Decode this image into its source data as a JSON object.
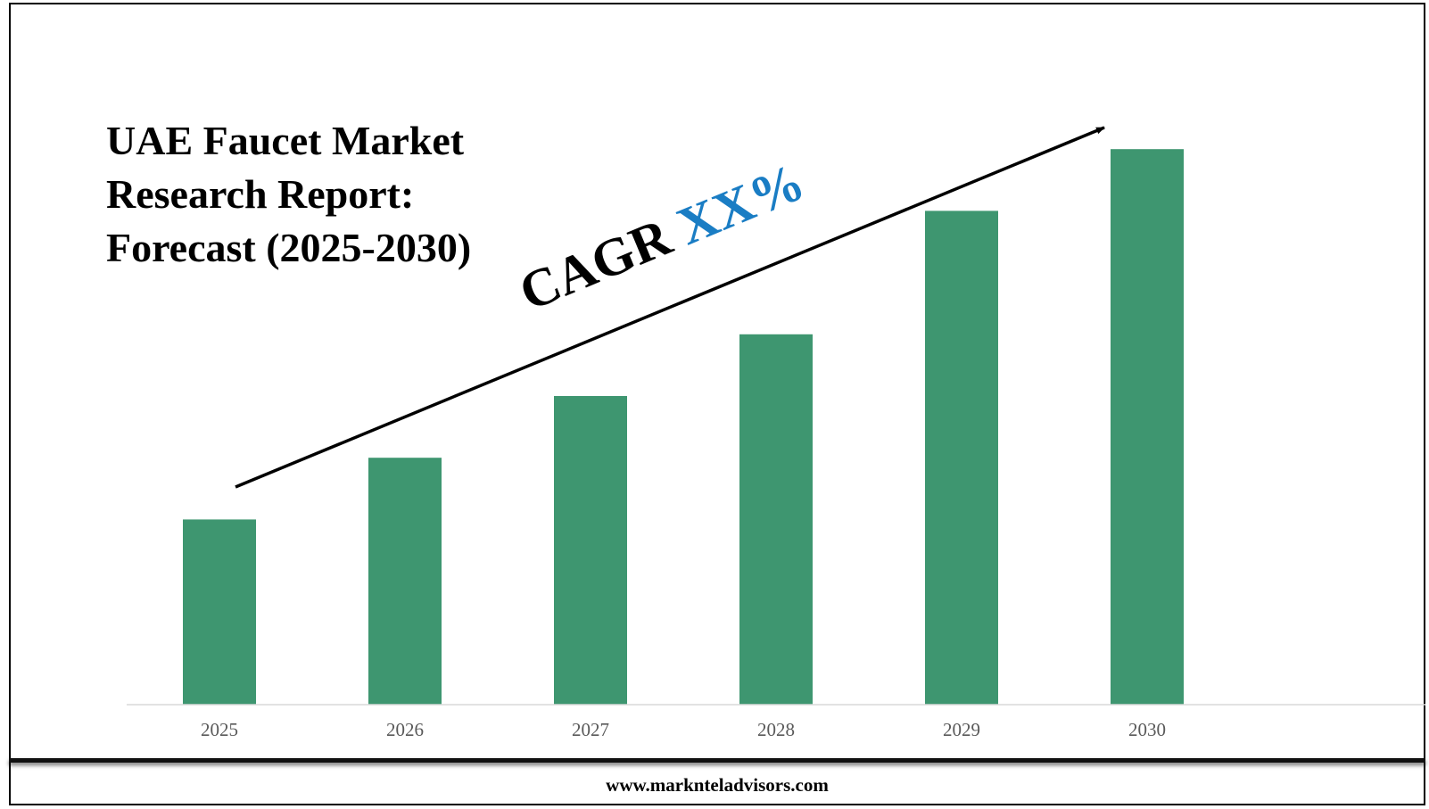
{
  "title_lines": [
    "UAE Faucet Market",
    "Research Report:",
    "Forecast (2025-2030)"
  ],
  "annotation": {
    "prefix": "CAGR ",
    "value": "XX%",
    "value_color": "#1a7dc4"
  },
  "footer": {
    "url": "www.marknteladvisors.com"
  },
  "chart_data": {
    "type": "bar",
    "categories": [
      "2025",
      "2026",
      "2027",
      "2028",
      "2029",
      "2030"
    ],
    "values": [
      30,
      40,
      50,
      60,
      80,
      90
    ],
    "title": "UAE Faucet Market Research Report: Forecast (2025-2030)",
    "xlabel": "",
    "ylabel": "",
    "ylim": [
      0,
      100
    ],
    "grid": false,
    "legend": "none",
    "bar_color": "#3e9670",
    "axis_color": "#d9d9d9",
    "tick_color": "#595959",
    "trend_arrow": true
  }
}
